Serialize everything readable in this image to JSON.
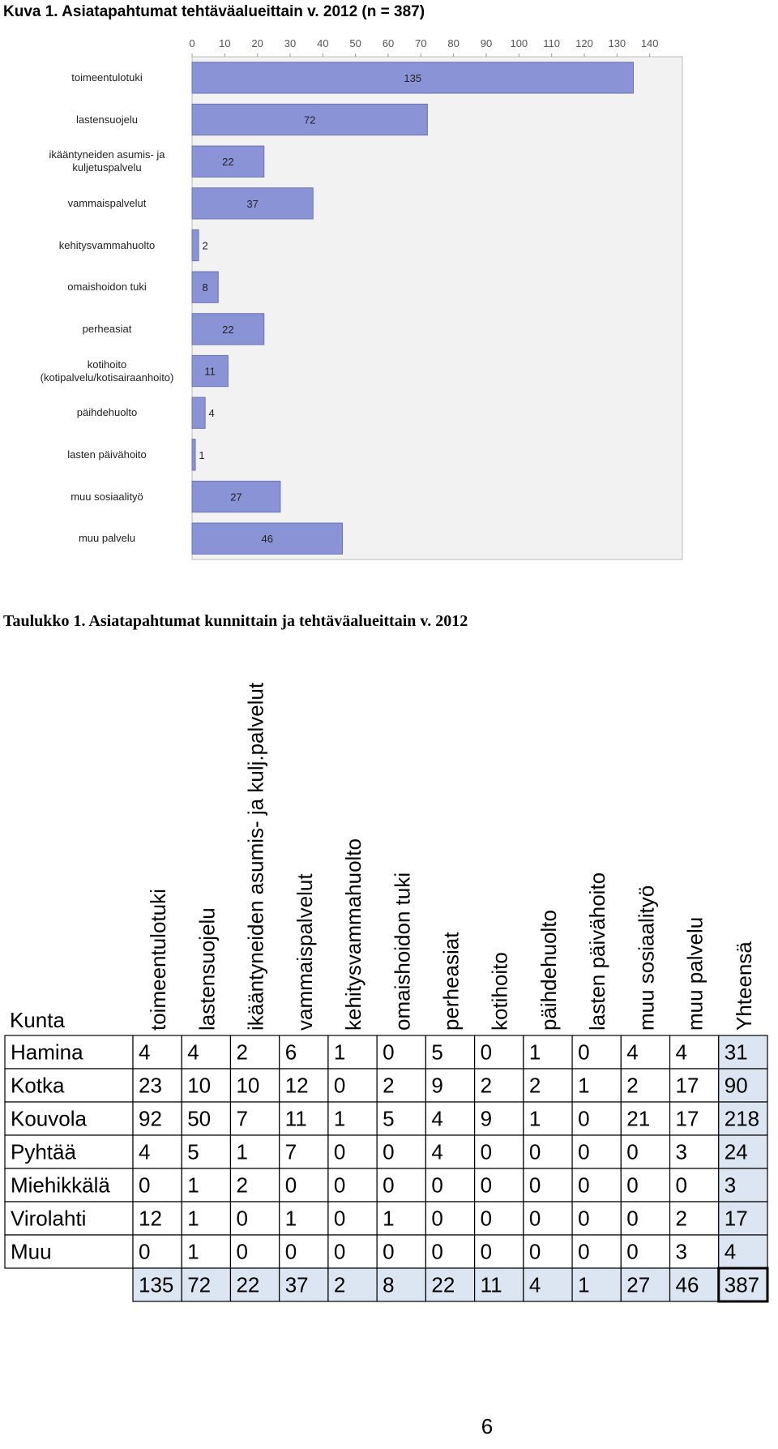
{
  "figure_caption": "Kuva 1.  Asiatapahtumat tehtäväalueittain v. 2012 (n = 387)",
  "chart_data": {
    "type": "bar",
    "orientation": "horizontal",
    "categories": [
      "toimeentulotuki",
      "lastensuojelu",
      "ikääntyneiden asumis- ja kuljetuspalvelu",
      "vammaispalvelut",
      "kehitysvammahuolto",
      "omaishoidon tuki",
      "perheasiat",
      "kotihoito (kotipalvelu/kotisairaanhoito)",
      "päihdehuolto",
      "lasten päivähoito",
      "muu sosiaalityö",
      "muu palvelu"
    ],
    "values": [
      135,
      72,
      22,
      37,
      2,
      8,
      22,
      11,
      4,
      1,
      27,
      46
    ],
    "color": "#8a93d6",
    "xlim": [
      0,
      150
    ],
    "xticks": [
      0,
      10,
      20,
      30,
      40,
      50,
      60,
      70,
      80,
      90,
      100,
      110,
      120,
      130,
      140
    ],
    "grid": false
  },
  "table_caption": "Taulukko 1.  Asiatapahtumat kunnittain ja tehtäväalueittain v. 2012",
  "table": {
    "header": [
      "Kunta",
      "toimeentulotuki",
      "lastensuojelu",
      "ikääntyneiden asumis- ja kulj.palvelut",
      "vammaispalvelut",
      "kehitysvammahuolto",
      "omaishoidon tuki",
      "perheasiat",
      "kotihoito",
      "päihdehuolto",
      "lasten päivähoito",
      "muu sosiaalityö",
      "muu palvelu",
      "Yhteensä"
    ],
    "rows": [
      [
        "Hamina",
        4,
        4,
        2,
        6,
        1,
        0,
        5,
        0,
        1,
        0,
        4,
        4,
        31
      ],
      [
        "Kotka",
        23,
        10,
        10,
        12,
        0,
        2,
        9,
        2,
        2,
        1,
        2,
        17,
        90
      ],
      [
        "Kouvola",
        92,
        50,
        7,
        11,
        1,
        5,
        4,
        9,
        1,
        0,
        21,
        17,
        218
      ],
      [
        "Pyhtää",
        4,
        5,
        1,
        7,
        0,
        0,
        4,
        0,
        0,
        0,
        0,
        3,
        24
      ],
      [
        "Miehikkälä",
        0,
        1,
        2,
        0,
        0,
        0,
        0,
        0,
        0,
        0,
        0,
        0,
        3
      ],
      [
        "Virolahti",
        12,
        1,
        0,
        1,
        0,
        1,
        0,
        0,
        0,
        0,
        0,
        2,
        17
      ],
      [
        "Muu",
        0,
        1,
        0,
        0,
        0,
        0,
        0,
        0,
        0,
        0,
        0,
        3,
        4
      ]
    ],
    "totals": [
      135,
      72,
      22,
      37,
      2,
      8,
      22,
      11,
      4,
      1,
      27,
      46,
      387
    ]
  },
  "page_number": "6"
}
